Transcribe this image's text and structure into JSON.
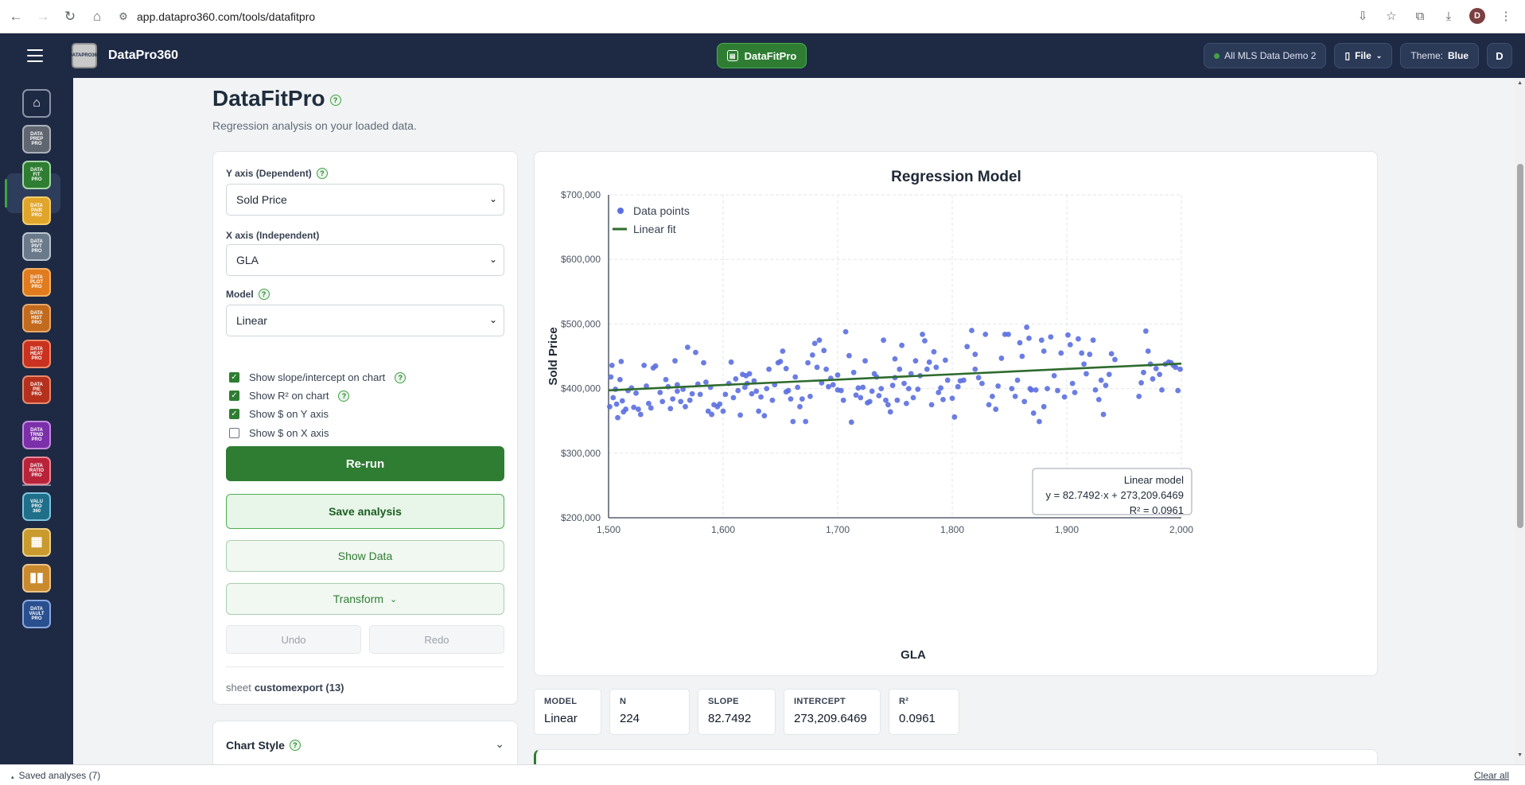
{
  "browser": {
    "url": "app.datapro360.com/tools/datafitpro",
    "profile_initial": "D"
  },
  "header": {
    "app_name": "DataPro360",
    "logo_lines": [
      "DATA",
      "PRO",
      "360"
    ],
    "active_tool": "DataFitPro",
    "dataset": "All MLS Data Demo 2",
    "file_label": "File",
    "theme_label": "Theme:",
    "theme_value": "Blue",
    "user_initial": "D"
  },
  "rail": {
    "items": [
      {
        "label": "home",
        "lines": [
          "⌂"
        ],
        "color": "#1e2a44",
        "border": "#8a93a6"
      },
      {
        "label": "data-prep-pro",
        "lines": [
          "DATA",
          "PREP",
          "PRO"
        ],
        "color": "#5f6670",
        "border": "#aab1ba"
      },
      {
        "label": "data-fit-pro",
        "lines": [
          "DATA",
          "FIT",
          "PRO"
        ],
        "color": "#2e7d32",
        "border": "#a5d6a7"
      },
      {
        "label": "data-pair-pro",
        "lines": [
          "DATA",
          "PAIR",
          "PRO"
        ],
        "color": "#e0a52a",
        "border": "#f3cd6b"
      },
      {
        "label": "data-pivot-pro",
        "lines": [
          "DATA",
          "PIVT",
          "PRO"
        ],
        "color": "#6b7a8a",
        "border": "#b8c4cf"
      },
      {
        "label": "data-plot-pro",
        "lines": [
          "DATA",
          "PLOT",
          "PRO"
        ],
        "color": "#e07b1e",
        "border": "#f3b36b"
      },
      {
        "label": "data-hist-pro",
        "lines": [
          "DATA",
          "HIST",
          "PRO"
        ],
        "color": "#c26b1e",
        "border": "#e8a86b"
      },
      {
        "label": "data-heat-pro",
        "lines": [
          "DATA",
          "HEAT",
          "PRO"
        ],
        "color": "#c8321e",
        "border": "#ef8a6b"
      },
      {
        "label": "data-pie-pro",
        "lines": [
          "DATA",
          "PIE",
          "PRO"
        ],
        "color": "#b5311e",
        "border": "#e88a6b"
      },
      {
        "label": "data-trend-pro",
        "lines": [
          "DATA",
          "TRND",
          "PRO"
        ],
        "color": "#7b2fa8",
        "border": "#c48ae0"
      },
      {
        "label": "data-ratio-pro",
        "lines": [
          "DATA",
          "RATIO",
          "PRO"
        ],
        "color": "#b8233a",
        "border": "#e88a99"
      },
      {
        "label": "valu-pro-360",
        "lines": [
          "VALU",
          "PRO",
          "360"
        ],
        "color": "#1f6f8b",
        "border": "#7fc4dc"
      },
      {
        "label": "report-grid",
        "lines": [
          "▦"
        ],
        "color": "#c99a2e",
        "border": "#ecd08a"
      },
      {
        "label": "report-chart",
        "lines": [
          "▮▮"
        ],
        "color": "#c98a2e",
        "border": "#ecc48a"
      },
      {
        "label": "data-vault-pro",
        "lines": [
          "DATA",
          "VAULT",
          "PRO"
        ],
        "color": "#2a4f8f",
        "border": "#8aa8e0"
      }
    ]
  },
  "page": {
    "title": "DataFitPro",
    "subtitle": "Regression analysis on your loaded data."
  },
  "controls": {
    "y_label": "Y axis (Dependent)",
    "y_value": "Sold Price",
    "x_label": "X axis (Independent)",
    "x_value": "GLA",
    "model_label": "Model",
    "model_value": "Linear",
    "checks": [
      {
        "label": "Show slope/intercept on chart",
        "checked": true,
        "help": true
      },
      {
        "label": "Show R² on chart",
        "checked": true,
        "help": true
      },
      {
        "label": "Show $ on Y axis",
        "checked": true,
        "help": false
      },
      {
        "label": "Show $ on X axis",
        "checked": false,
        "help": false
      }
    ],
    "rerun": "Re-run",
    "save": "Save analysis",
    "show_data": "Show Data",
    "transform": "Transform",
    "undo": "Undo",
    "redo": "Redo",
    "sheet_prefix": "sheet",
    "sheet_name": "customexport (13)"
  },
  "chart_style": {
    "title": "Chart Style"
  },
  "chart_data": {
    "type": "scatter",
    "title": "Regression Model",
    "xlabel": "GLA",
    "ylabel": "Sold Price",
    "xlim": [
      1500,
      2000
    ],
    "ylim": [
      200000,
      700000
    ],
    "xticks": [
      "1,500",
      "1,600",
      "1,700",
      "1,800",
      "1,900",
      "2,000"
    ],
    "yticks": [
      "$200,000",
      "$300,000",
      "$400,000",
      "$500,000",
      "$600,000",
      "$700,000"
    ],
    "grid": true,
    "legend": "top-left",
    "series": [
      {
        "name": "Data points",
        "kind": "scatter",
        "color": "#5b6fe0"
      },
      {
        "name": "Linear fit",
        "kind": "line",
        "color": "#2e6b2e"
      }
    ],
    "fit": {
      "slope": 82.7492,
      "intercept": 273209.6469,
      "x_range": [
        1500,
        2000
      ]
    },
    "annotation": [
      "Linear model",
      "y = 82.7492·x + 273,209.6469",
      "R² = 0.0961"
    ],
    "points": [
      [
        1501,
        372000
      ],
      [
        1502,
        418000
      ],
      [
        1503,
        436000
      ],
      [
        1504,
        386000
      ],
      [
        1506,
        399000
      ],
      [
        1507,
        376000
      ],
      [
        1508,
        355000
      ],
      [
        1510,
        414000
      ],
      [
        1511,
        442000
      ],
      [
        1512,
        381000
      ],
      [
        1513,
        364000
      ],
      [
        1515,
        368000
      ],
      [
        1517,
        397000
      ],
      [
        1520,
        401000
      ],
      [
        1522,
        371000
      ],
      [
        1524,
        393000
      ],
      [
        1526,
        368000
      ],
      [
        1528,
        360000
      ],
      [
        1531,
        436000
      ],
      [
        1533,
        404000
      ],
      [
        1535,
        377000
      ],
      [
        1537,
        370000
      ],
      [
        1539,
        432000
      ],
      [
        1541,
        435000
      ],
      [
        1545,
        394000
      ],
      [
        1547,
        380000
      ],
      [
        1550,
        414000
      ],
      [
        1552,
        403000
      ],
      [
        1554,
        369000
      ],
      [
        1556,
        384000
      ],
      [
        1558,
        443000
      ],
      [
        1560,
        396000
      ],
      [
        1563,
        380000
      ],
      [
        1565,
        399000
      ],
      [
        1567,
        372000
      ],
      [
        1569,
        464000
      ],
      [
        1571,
        382000
      ],
      [
        1573,
        392000
      ],
      [
        1576,
        456000
      ],
      [
        1578,
        407000
      ],
      [
        1580,
        391000
      ],
      [
        1583,
        440000
      ],
      [
        1585,
        410000
      ],
      [
        1587,
        365000
      ],
      [
        1589,
        402000
      ],
      [
        1592,
        375000
      ],
      [
        1595,
        372000
      ],
      [
        1597,
        376000
      ],
      [
        1600,
        365000
      ],
      [
        1602,
        391000
      ],
      [
        1605,
        408000
      ],
      [
        1607,
        441000
      ],
      [
        1609,
        386000
      ],
      [
        1611,
        415000
      ],
      [
        1613,
        397000
      ],
      [
        1615,
        359000
      ],
      [
        1617,
        422000
      ],
      [
        1619,
        402000
      ],
      [
        1621,
        408000
      ],
      [
        1623,
        423000
      ],
      [
        1625,
        392000
      ],
      [
        1627,
        412000
      ],
      [
        1629,
        396000
      ],
      [
        1631,
        365000
      ],
      [
        1633,
        387000
      ],
      [
        1636,
        358000
      ],
      [
        1638,
        400000
      ],
      [
        1640,
        430000
      ],
      [
        1643,
        382000
      ],
      [
        1645,
        406000
      ],
      [
        1648,
        440000
      ],
      [
        1650,
        442000
      ],
      [
        1652,
        458000
      ],
      [
        1655,
        431000
      ],
      [
        1657,
        397000
      ],
      [
        1659,
        384000
      ],
      [
        1661,
        349000
      ],
      [
        1663,
        418000
      ],
      [
        1665,
        402000
      ],
      [
        1667,
        372000
      ],
      [
        1669,
        384000
      ],
      [
        1672,
        349000
      ],
      [
        1674,
        440000
      ],
      [
        1676,
        388000
      ],
      [
        1678,
        452000
      ],
      [
        1680,
        470000
      ],
      [
        1682,
        433000
      ],
      [
        1684,
        475000
      ],
      [
        1686,
        409000
      ],
      [
        1688,
        459000
      ],
      [
        1690,
        430000
      ],
      [
        1692,
        403000
      ],
      [
        1694,
        416000
      ],
      [
        1696,
        406000
      ],
      [
        1700,
        398000
      ],
      [
        1703,
        397000
      ],
      [
        1705,
        382000
      ],
      [
        1707,
        488000
      ],
      [
        1710,
        451000
      ],
      [
        1712,
        348000
      ],
      [
        1714,
        425000
      ],
      [
        1716,
        390000
      ],
      [
        1718,
        401000
      ],
      [
        1720,
        386000
      ],
      [
        1722,
        402000
      ],
      [
        1724,
        443000
      ],
      [
        1726,
        378000
      ],
      [
        1728,
        380000
      ],
      [
        1730,
        396000
      ],
      [
        1732,
        423000
      ],
      [
        1734,
        418000
      ],
      [
        1736,
        389000
      ],
      [
        1738,
        400000
      ],
      [
        1740,
        475000
      ],
      [
        1742,
        382000
      ],
      [
        1744,
        375000
      ],
      [
        1746,
        364000
      ],
      [
        1748,
        405000
      ],
      [
        1750,
        417000
      ],
      [
        1752,
        382000
      ],
      [
        1754,
        430000
      ],
      [
        1756,
        467000
      ],
      [
        1758,
        408000
      ],
      [
        1760,
        377000
      ],
      [
        1762,
        400000
      ],
      [
        1764,
        423000
      ],
      [
        1766,
        386000
      ],
      [
        1768,
        443000
      ],
      [
        1770,
        399000
      ],
      [
        1772,
        420000
      ],
      [
        1774,
        484000
      ],
      [
        1776,
        474000
      ],
      [
        1778,
        430000
      ],
      [
        1780,
        441000
      ],
      [
        1782,
        375000
      ],
      [
        1784,
        457000
      ],
      [
        1786,
        433000
      ],
      [
        1788,
        394000
      ],
      [
        1790,
        401000
      ],
      [
        1792,
        383000
      ],
      [
        1794,
        444000
      ],
      [
        1796,
        413000
      ],
      [
        1800,
        385000
      ],
      [
        1802,
        356000
      ],
      [
        1805,
        403000
      ],
      [
        1807,
        412000
      ],
      [
        1810,
        413000
      ],
      [
        1813,
        465000
      ],
      [
        1817,
        490000
      ],
      [
        1820,
        453000
      ],
      [
        1823,
        417000
      ],
      [
        1826,
        408000
      ],
      [
        1829,
        484000
      ],
      [
        1832,
        375000
      ],
      [
        1835,
        388000
      ],
      [
        1838,
        368000
      ],
      [
        1840,
        404000
      ],
      [
        1843,
        447000
      ],
      [
        1846,
        484000
      ],
      [
        1849,
        484000
      ],
      [
        1852,
        400000
      ],
      [
        1855,
        388000
      ],
      [
        1857,
        413000
      ],
      [
        1859,
        471000
      ],
      [
        1861,
        450000
      ],
      [
        1863,
        380000
      ],
      [
        1865,
        495000
      ],
      [
        1867,
        478000
      ],
      [
        1869,
        398000
      ],
      [
        1871,
        362000
      ],
      [
        1873,
        398000
      ],
      [
        1876,
        349000
      ],
      [
        1878,
        475000
      ],
      [
        1880,
        458000
      ],
      [
        1883,
        400000
      ],
      [
        1886,
        480000
      ],
      [
        1889,
        420000
      ],
      [
        1892,
        397000
      ],
      [
        1895,
        455000
      ],
      [
        1898,
        387000
      ],
      [
        1901,
        483000
      ],
      [
        1903,
        468000
      ],
      [
        1905,
        408000
      ],
      [
        1907,
        394000
      ],
      [
        1910,
        477000
      ],
      [
        1913,
        455000
      ],
      [
        1915,
        438000
      ],
      [
        1917,
        423000
      ],
      [
        1920,
        453000
      ],
      [
        1923,
        475000
      ],
      [
        1925,
        398000
      ],
      [
        1928,
        383000
      ],
      [
        1930,
        413000
      ],
      [
        1932,
        360000
      ],
      [
        1934,
        405000
      ],
      [
        1937,
        422000
      ],
      [
        1939,
        454000
      ],
      [
        1942,
        445000
      ],
      [
        1963,
        388000
      ],
      [
        1965,
        409000
      ],
      [
        1967,
        425000
      ],
      [
        1969,
        489000
      ],
      [
        1971,
        458000
      ],
      [
        1973,
        438000
      ],
      [
        1975,
        415000
      ],
      [
        1978,
        431000
      ],
      [
        1981,
        422000
      ],
      [
        1983,
        398000
      ],
      [
        1986,
        438000
      ],
      [
        1989,
        441000
      ],
      [
        1991,
        440000
      ],
      [
        1993,
        436000
      ],
      [
        1995,
        433000
      ],
      [
        1997,
        397000
      ],
      [
        1999,
        430000
      ],
      [
        1868,
        400000
      ],
      [
        1700,
        421000
      ],
      [
        1750,
        446000
      ],
      [
        1820,
        430000
      ],
      [
        1655,
        395000
      ],
      [
        1560,
        406000
      ],
      [
        1620,
        420000
      ],
      [
        1590,
        360000
      ],
      [
        1880,
        372000
      ]
    ]
  },
  "stats": [
    {
      "label": "MODEL",
      "value": "Linear"
    },
    {
      "label": "N",
      "value": "224"
    },
    {
      "label": "SLOPE",
      "value": "82.7492"
    },
    {
      "label": "INTERCEPT",
      "value": "273,209.6469"
    },
    {
      "label": "R²",
      "value": "0.0961"
    }
  ],
  "footer": {
    "saved": "Saved analyses (7)",
    "clear": "Clear all"
  }
}
